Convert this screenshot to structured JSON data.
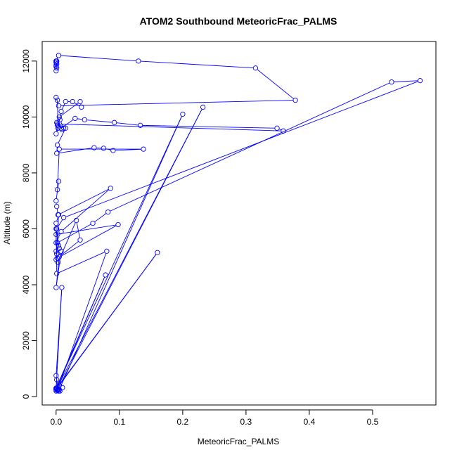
{
  "chart_data": {
    "type": "line",
    "title": "ATOM2 Southbound MeteoricFrac_PALMS",
    "xlabel": "MeteoricFrac_PALMS",
    "ylabel": "Altitude (m)",
    "xlim": [
      -0.022,
      0.6
    ],
    "ylim": [
      -300,
      12700
    ],
    "x_ticks": [
      0.0,
      0.1,
      0.2,
      0.3,
      0.4,
      0.5
    ],
    "x_tick_labels": [
      "0.0",
      "0.1",
      "0.2",
      "0.3",
      "0.4",
      "0.5"
    ],
    "y_ticks": [
      0,
      2000,
      4000,
      6000,
      8000,
      10000,
      12000
    ],
    "y_tick_labels": [
      "0",
      "2000",
      "4000",
      "6000",
      "8000",
      "10000",
      "12000"
    ],
    "grid": false,
    "color": "#0000ff",
    "series": [
      {
        "x": [
          0.001,
          0.001,
          0.0,
          0.0,
          0.0,
          0.001,
          0.0,
          0.0,
          0.0,
          0.004,
          0.13,
          0.315,
          0.378,
          0.004,
          0.0,
          0.002,
          0.003,
          0.008,
          0.015,
          0.026,
          0.04,
          0.038,
          0.005,
          0.002,
          0.0,
          0.004,
          0.001,
          0.008,
          0.03,
          0.045,
          0.092,
          0.133,
          0.349,
          0.359,
          0.002,
          0.006,
          0.012,
          0.009,
          0.015,
          0.002,
          0.001,
          0.06,
          0.075,
          0.09,
          0.138,
          0.005,
          0.002,
          0.004,
          0.0,
          0.001,
          0.003,
          0.086,
          0.008,
          0.0,
          0.0,
          0.005,
          0.001,
          0.004,
          0.0,
          0.002,
          0.058,
          0.082,
          0.53,
          0.575,
          0.012,
          0.001,
          0.0,
          0.098,
          0.002,
          0.003,
          0.032,
          0.038,
          0.005,
          0.0,
          0.008,
          0.0,
          0.004,
          0.0,
          0.001,
          0.08,
          0.005,
          0.16,
          0.001,
          0.002,
          0.0,
          0.01,
          0.005,
          0.0,
          0.078,
          0.001,
          0.002,
          0.0,
          0.232,
          0.003,
          0.0,
          0.2,
          0.004,
          0.0,
          0.009,
          0.0,
          0.006,
          0.0,
          0.001,
          0.0,
          0.004
        ],
        "y": [
          11750,
          12000,
          11650,
          12000,
          11800,
          11900,
          11850,
          11950,
          12000,
          12200,
          12000,
          11750,
          10600,
          10400,
          10700,
          10600,
          9600,
          10200,
          10550,
          10550,
          10350,
          10550,
          10000,
          9700,
          9400,
          9650,
          9800,
          9600,
          9950,
          9900,
          9800,
          9700,
          9600,
          9500,
          9750,
          9900,
          9600,
          9550,
          9600,
          9000,
          8700,
          8900,
          8880,
          8800,
          8850,
          8850,
          7400,
          7700,
          7000,
          6800,
          6500,
          7450,
          5900,
          5500,
          6000,
          5300,
          5100,
          5400,
          5200,
          5500,
          6200,
          6600,
          11250,
          11300,
          6400,
          6000,
          5800,
          6150,
          4950,
          4800,
          6300,
          5600,
          5000,
          3900,
          5200,
          4900,
          6500,
          6200,
          4400,
          5200,
          400,
          5150,
          300,
          250,
          200,
          320,
          250,
          300,
          4350,
          300,
          220,
          250,
          10350,
          280,
          300,
          10100,
          200,
          750,
          3900,
          300,
          200,
          250,
          600,
          300,
          250
        ]
      }
    ]
  }
}
